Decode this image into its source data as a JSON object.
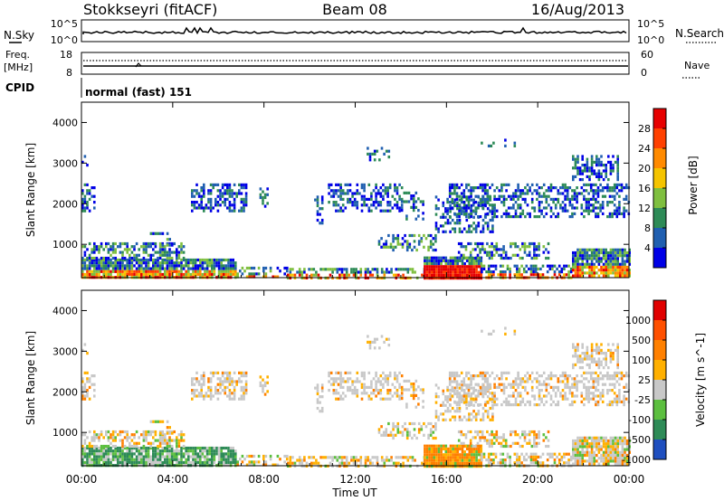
{
  "header": {
    "station": "Stokkseyri (fitACF)",
    "beam": "Beam 08",
    "date": "16/Aug/2013"
  },
  "noise_panel": {
    "left_label": "N.Sky",
    "right_label": "N.Search",
    "left_ticks": [
      "10^5",
      "10^0"
    ],
    "right_ticks": [
      "10^5",
      "10^0"
    ]
  },
  "freq_panel": {
    "left_label_1": "Freq.",
    "left_label_2": "[MHz]",
    "right_label": "Nave",
    "left_ticks": [
      "18",
      "8"
    ],
    "right_ticks": [
      "60",
      "0"
    ]
  },
  "cpid_panel": {
    "label": "CPID",
    "mode_text": "normal (fast) 151"
  },
  "chart_data": [
    {
      "type": "heatmap",
      "name": "power",
      "ylabel": "Slant Range [km]",
      "ylim": [
        180,
        4500
      ],
      "yticks": [
        "1000",
        "2000",
        "3000",
        "4000"
      ],
      "ytick_values": [
        1000,
        2000,
        3000,
        4000
      ],
      "colorbar_label": "Power [dB]",
      "colorbar_ticks": [
        "4",
        "8",
        "12",
        "16",
        "20",
        "24",
        "28"
      ],
      "colors": [
        "#0000e6",
        "#205fb0",
        "#2e8b57",
        "#7fbf3f",
        "#f5c400",
        "#ff8a00",
        "#ff4000",
        "#e60000"
      ]
    },
    {
      "type": "heatmap",
      "name": "velocity",
      "ylabel": "Slant Range [km]",
      "ylim": [
        180,
        4500
      ],
      "yticks": [
        "1000",
        "2000",
        "3000",
        "4000"
      ],
      "ytick_values": [
        1000,
        2000,
        3000,
        4000
      ],
      "colorbar_label": "Velocity [m s^-1]",
      "colorbar_ticks": [
        "1000",
        "500",
        "100",
        "25",
        "-25",
        "-100",
        "-500",
        "-1000"
      ],
      "colors": [
        "#1f4fbf",
        "#2e8b57",
        "#5cbf3f",
        "#c8c8c8",
        "#ffb000",
        "#ff8000",
        "#ff5000",
        "#e00000"
      ]
    }
  ],
  "x_axis": {
    "xlabel": "Time UT",
    "ticks": [
      "00:00",
      "04:00",
      "08:00",
      "12:00",
      "16:00",
      "20:00",
      "00:00"
    ],
    "tick_hours": [
      0,
      4,
      8,
      12,
      16,
      20,
      24
    ]
  }
}
